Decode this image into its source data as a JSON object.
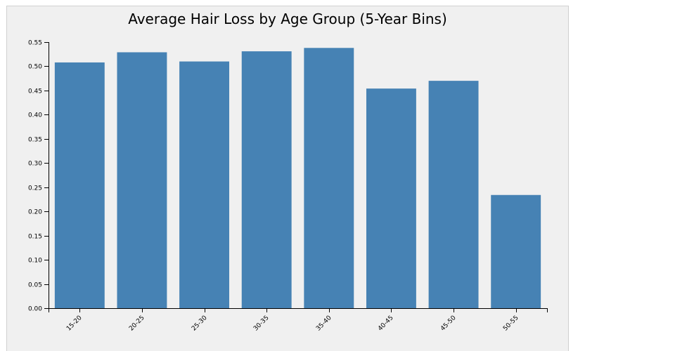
{
  "chart_data": {
    "type": "bar",
    "title": "Average Hair Loss by Age Group (5-Year Bins)",
    "xlabel": "",
    "ylabel": "",
    "categories": [
      "15-20",
      "20-25",
      "25-30",
      "30-35",
      "35-40",
      "40-45",
      "45-50",
      "50-55"
    ],
    "values": [
      0.508,
      0.529,
      0.51,
      0.531,
      0.538,
      0.454,
      0.47,
      0.234
    ],
    "ylim": [
      0,
      0.55
    ],
    "yticks": [
      "0.00",
      "0.05",
      "0.10",
      "0.15",
      "0.20",
      "0.25",
      "0.30",
      "0.35",
      "0.40",
      "0.45",
      "0.50",
      "0.55"
    ],
    "grid": false,
    "legend": "none",
    "bar_color": "#4682b4",
    "background_color": "#f0f0f0"
  }
}
